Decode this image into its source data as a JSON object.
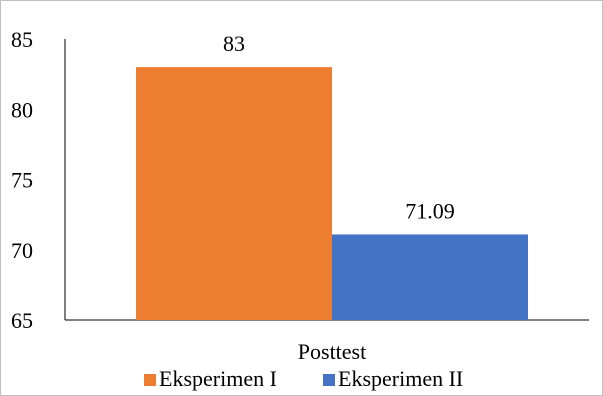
{
  "chart_data": {
    "type": "bar",
    "categories": [
      "Posttest"
    ],
    "series": [
      {
        "name": "Eksperimen I",
        "values": [
          83
        ],
        "color": "#ED7D31",
        "label": "83"
      },
      {
        "name": "Eksperimen II",
        "values": [
          71.09
        ],
        "color": "#4472C4",
        "label": "71.09"
      }
    ],
    "ylim": [
      65,
      85
    ],
    "yticks": [
      "65",
      "70",
      "75",
      "80",
      "85"
    ],
    "grid": false,
    "legend_position": "bottom"
  }
}
